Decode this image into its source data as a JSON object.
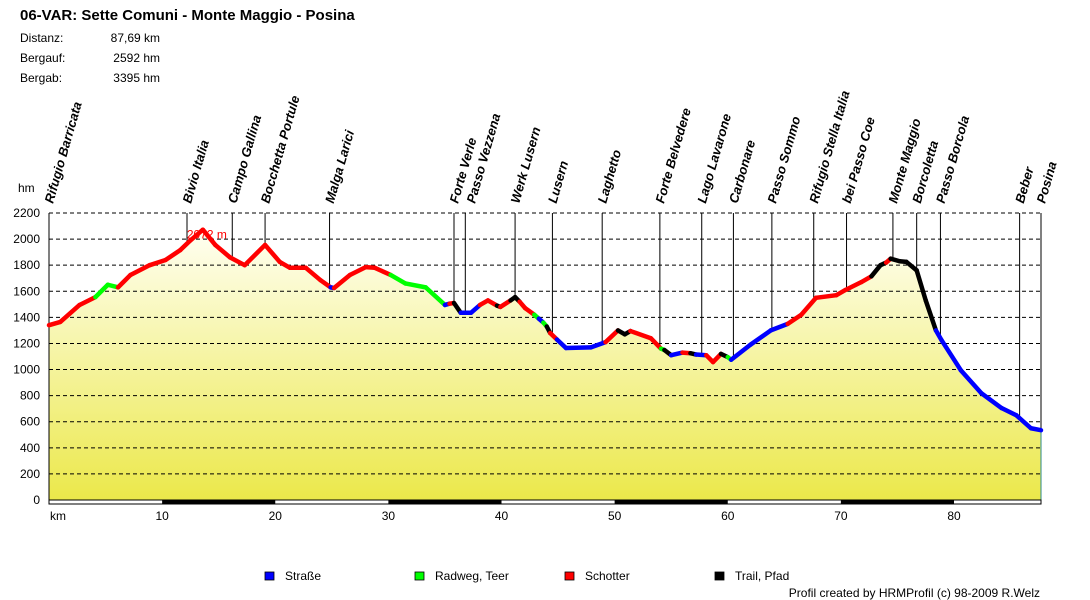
{
  "header": {
    "title": "06-VAR: Sette Comuni - Monte Maggio - Posina",
    "stats": [
      {
        "label": "Distanz:",
        "value": "87,69 km"
      },
      {
        "label": "Bergauf:",
        "value": "2592 hm"
      },
      {
        "label": "Bergab:",
        "value": "3395 hm"
      }
    ]
  },
  "footer": "Profil created by HRMProfil (c) 98-2009 R.Welz",
  "chart_data": {
    "type": "area",
    "title": "06-VAR: Sette Comuni - Monte Maggio - Posina",
    "xlabel": "km",
    "ylabel": "hm",
    "xlim": [
      0,
      87.69
    ],
    "ylim": [
      0,
      2200
    ],
    "x_ticks": [
      10,
      20,
      30,
      40,
      50,
      60,
      70,
      80
    ],
    "y_ticks": [
      0,
      200,
      400,
      600,
      800,
      1000,
      1200,
      1400,
      1600,
      1800,
      2000,
      2200
    ],
    "grid": "horizontal dashed",
    "legend_placement": "bottom",
    "peak_label": {
      "km": 13.6,
      "elevation": 2072,
      "text": "2072 m"
    },
    "legend": [
      {
        "key": "strasse",
        "name": "Straße",
        "color": "#0000ff"
      },
      {
        "key": "radweg",
        "name": "Radweg, Teer",
        "color": "#00ff00"
      },
      {
        "key": "schotter",
        "name": "Schotter",
        "color": "#ff0000"
      },
      {
        "key": "trail",
        "name": "Trail, Pfad",
        "color": "#000000"
      }
    ],
    "profile": [
      [
        0,
        1340,
        "schotter"
      ],
      [
        1.0,
        1365,
        "schotter"
      ],
      [
        2.7,
        1495,
        "schotter"
      ],
      [
        4.1,
        1555,
        "schotter"
      ],
      [
        5.2,
        1650,
        "radweg"
      ],
      [
        6.1,
        1630,
        "radweg"
      ],
      [
        7.2,
        1725,
        "schotter"
      ],
      [
        8.9,
        1800,
        "schotter"
      ],
      [
        10.3,
        1840,
        "schotter"
      ],
      [
        11.6,
        1915,
        "schotter"
      ],
      [
        12.5,
        1990,
        "schotter"
      ],
      [
        13.6,
        2072,
        "schotter"
      ],
      [
        14.7,
        1955,
        "schotter"
      ],
      [
        16.0,
        1860,
        "schotter"
      ],
      [
        17.3,
        1800,
        "schotter"
      ],
      [
        19.1,
        1955,
        "schotter"
      ],
      [
        20.4,
        1825,
        "schotter"
      ],
      [
        21.3,
        1780,
        "schotter"
      ],
      [
        22.7,
        1780,
        "schotter"
      ],
      [
        24.0,
        1685,
        "schotter"
      ],
      [
        24.9,
        1630,
        "schotter"
      ],
      [
        25.2,
        1625,
        "strasse"
      ],
      [
        26.6,
        1725,
        "schotter"
      ],
      [
        28.0,
        1785,
        "schotter"
      ],
      [
        28.8,
        1780,
        "schotter"
      ],
      [
        30.2,
        1725,
        "schotter"
      ],
      [
        31.5,
        1660,
        "radweg"
      ],
      [
        33.3,
        1630,
        "radweg"
      ],
      [
        35.0,
        1495,
        "radweg"
      ],
      [
        35.4,
        1505,
        "strasse"
      ],
      [
        35.8,
        1510,
        "schotter"
      ],
      [
        36.4,
        1435,
        "trail"
      ],
      [
        37.3,
        1435,
        "strasse"
      ],
      [
        38.1,
        1495,
        "strasse"
      ],
      [
        38.8,
        1530,
        "schotter"
      ],
      [
        39.6,
        1490,
        "schotter"
      ],
      [
        39.9,
        1480,
        "trail"
      ],
      [
        40.8,
        1530,
        "schotter"
      ],
      [
        41.2,
        1555,
        "trail"
      ],
      [
        41.6,
        1520,
        "trail"
      ],
      [
        42.1,
        1470,
        "schotter"
      ],
      [
        42.9,
        1420,
        "schotter"
      ],
      [
        43.3,
        1390,
        "radweg"
      ],
      [
        43.7,
        1360,
        "strasse"
      ],
      [
        44.0,
        1330,
        "radweg"
      ],
      [
        44.3,
        1280,
        "trail"
      ],
      [
        44.9,
        1230,
        "schotter"
      ],
      [
        45.7,
        1165,
        "strasse"
      ],
      [
        47.9,
        1170,
        "strasse"
      ],
      [
        49.2,
        1210,
        "strasse"
      ],
      [
        50.3,
        1300,
        "schotter"
      ],
      [
        50.9,
        1270,
        "trail"
      ],
      [
        51.4,
        1295,
        "trail"
      ],
      [
        53.2,
        1240,
        "schotter"
      ],
      [
        54.1,
        1160,
        "schotter"
      ],
      [
        54.4,
        1150,
        "radweg"
      ],
      [
        55.0,
        1110,
        "trail"
      ],
      [
        56.0,
        1130,
        "strasse"
      ],
      [
        56.7,
        1125,
        "schotter"
      ],
      [
        57.2,
        1115,
        "trail"
      ],
      [
        58.1,
        1110,
        "strasse"
      ],
      [
        58.7,
        1057,
        "schotter"
      ],
      [
        59.4,
        1120,
        "schotter"
      ],
      [
        60.0,
        1095,
        "trail"
      ],
      [
        60.3,
        1075,
        "radweg"
      ],
      [
        62.0,
        1190,
        "strasse"
      ],
      [
        63.8,
        1300,
        "strasse"
      ],
      [
        65.3,
        1350,
        "strasse"
      ],
      [
        66.5,
        1420,
        "schotter"
      ],
      [
        67.8,
        1550,
        "schotter"
      ],
      [
        69.6,
        1570,
        "schotter"
      ],
      [
        70.4,
        1610,
        "schotter"
      ],
      [
        71.8,
        1670,
        "schotter"
      ],
      [
        72.7,
        1715,
        "schotter"
      ],
      [
        73.5,
        1800,
        "trail"
      ],
      [
        74.0,
        1820,
        "trail"
      ],
      [
        74.4,
        1850,
        "schotter"
      ],
      [
        75.2,
        1830,
        "trail"
      ],
      [
        75.8,
        1825,
        "trail"
      ],
      [
        76.7,
        1760,
        "trail"
      ],
      [
        77.5,
        1530,
        "trail"
      ],
      [
        78.4,
        1300,
        "trail"
      ],
      [
        78.9,
        1225,
        "strasse"
      ],
      [
        80.6,
        995,
        "strasse"
      ],
      [
        82.4,
        820,
        "strasse"
      ],
      [
        84.2,
        705,
        "strasse"
      ],
      [
        85.5,
        650,
        "strasse"
      ],
      [
        86.8,
        550,
        "strasse"
      ],
      [
        87.69,
        535,
        "strasse"
      ]
    ],
    "waypoints": [
      {
        "name": "Rifugio Barricata",
        "km": 0
      },
      {
        "name": "Bivio Italia",
        "km": 12.2
      },
      {
        "name": "Campo Gallina",
        "km": 16.2
      },
      {
        "name": "Bocchetta Portule",
        "km": 19.1
      },
      {
        "name": "Malga Larici",
        "km": 24.8
      },
      {
        "name": "Forte Verle",
        "km": 35.8
      },
      {
        "name": "Passo Vezzena",
        "km": 36.8
      },
      {
        "name": "Werk Lusern",
        "km": 41.2
      },
      {
        "name": "Lusern",
        "km": 44.5
      },
      {
        "name": "Laghetto",
        "km": 48.9
      },
      {
        "name": "Forte Belvedere",
        "km": 54.0
      },
      {
        "name": "Lago Lavarone",
        "km": 57.7
      },
      {
        "name": "Carbonare",
        "km": 60.5
      },
      {
        "name": "Passo Sommo",
        "km": 63.9
      },
      {
        "name": "Rifugio Stella Italia",
        "km": 67.6
      },
      {
        "name": "bei Passo Coe",
        "km": 70.5
      },
      {
        "name": "Monte Maggio",
        "km": 74.6
      },
      {
        "name": "Borcoletta",
        "km": 76.7
      },
      {
        "name": "Passo Borcola",
        "km": 78.8
      },
      {
        "name": "Beber",
        "km": 85.8
      },
      {
        "name": "Posina",
        "km": 87.69
      }
    ]
  }
}
